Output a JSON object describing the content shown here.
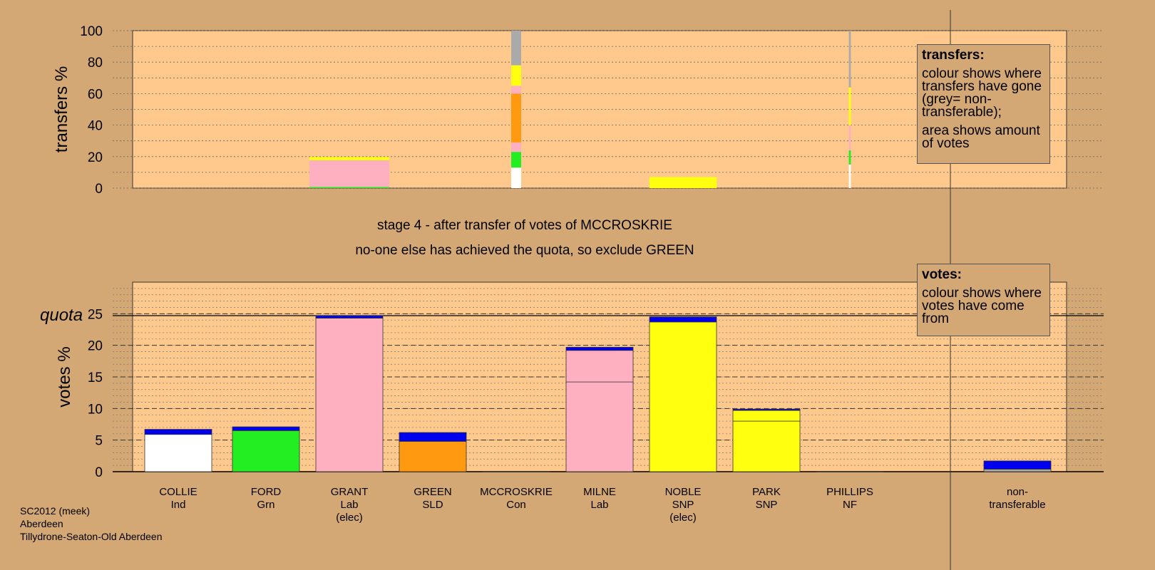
{
  "stage_text": "stage 4 - after transfer of votes of MCCROSKRIE",
  "decision_text": "no-one else has achieved the quota, so exclude GREEN",
  "colors": {
    "white": "#FFFFFF",
    "green": "#22EE22",
    "pink": "#FFB0C0",
    "orange": "#FF9910",
    "yellow": "#FFFF10",
    "grey": "#AAAAAA",
    "blue": "#0000EE",
    "plot_bg": "#FFC88C",
    "page_bg": "#D4A874"
  },
  "legend_transfers": {
    "title": "transfers:",
    "line1": "colour shows where transfers have gone (grey= non-transferable);",
    "line2": "area shows amount of votes"
  },
  "legend_votes": {
    "title": "votes:",
    "line1": "colour shows where votes have come from"
  },
  "credit": {
    "line1": "SC2012 (meek)",
    "line2": "Aberdeen",
    "line3": "Tillydrone-Seaton-Old Aberdeen"
  },
  "chart_data": [
    {
      "type": "bar",
      "name": "transfers",
      "ylabel": "transfers %",
      "ylim": [
        0,
        100
      ],
      "yticks": [
        0,
        20,
        40,
        60,
        80,
        100
      ],
      "bars": [
        {
          "candidate": "GRANT",
          "width_pct_votes": 3.2,
          "segments": [
            {
              "color": "green",
              "value": 0.7
            },
            {
              "color": "pink",
              "value": 17
            },
            {
              "color": "yellow",
              "value": 2
            }
          ]
        },
        {
          "candidate": "MCCROSKRIE",
          "width_pct_votes": 0.4,
          "segments": [
            {
              "color": "white",
              "value": 13
            },
            {
              "color": "green",
              "value": 10
            },
            {
              "color": "pink",
              "value": 6
            },
            {
              "color": "orange",
              "value": 31
            },
            {
              "color": "pink",
              "value": 5
            },
            {
              "color": "yellow",
              "value": 13
            },
            {
              "color": "grey",
              "value": 22
            }
          ]
        },
        {
          "candidate": "NOBLE",
          "width_pct_votes": 2.7,
          "segments": [
            {
              "color": "yellow",
              "value": 7
            }
          ]
        },
        {
          "candidate": "PHILLIPS",
          "width_pct_votes": 0.08,
          "segments": [
            {
              "color": "white",
              "value": 15
            },
            {
              "color": "green",
              "value": 9
            },
            {
              "color": "pink",
              "value": 16
            },
            {
              "color": "yellow",
              "value": 24
            },
            {
              "color": "grey",
              "value": 36
            }
          ]
        }
      ]
    },
    {
      "type": "bar",
      "name": "votes",
      "ylabel": "votes %",
      "ylim": [
        0,
        30
      ],
      "yticks": [
        0,
        5,
        10,
        15,
        20,
        25
      ],
      "quota": 24.7,
      "quota_label": "quota",
      "candidates": [
        {
          "name": "COLLIE",
          "party": "Ind",
          "note": "",
          "segments": [
            {
              "color": "white",
              "value": 5.9
            },
            {
              "color": "blue",
              "value": 0.8
            }
          ]
        },
        {
          "name": "FORD",
          "party": "Grn",
          "note": "",
          "segments": [
            {
              "color": "green",
              "value": 6.5
            },
            {
              "color": "blue",
              "value": 0.6
            }
          ]
        },
        {
          "name": "GRANT",
          "party": "Lab",
          "note": "(elec)",
          "segments": [
            {
              "color": "pink",
              "value": 24.3
            },
            {
              "color": "blue",
              "value": 0.4
            }
          ]
        },
        {
          "name": "GREEN",
          "party": "SLD",
          "note": "",
          "segments": [
            {
              "color": "orange",
              "value": 4.8
            },
            {
              "color": "blue",
              "value": 1.4
            }
          ]
        },
        {
          "name": "MCCROSKRIE",
          "party": "Con",
          "note": "",
          "segments": [
            {
              "color": "blue",
              "value": 0.05
            }
          ]
        },
        {
          "name": "MILNE",
          "party": "Lab",
          "note": "",
          "segments": [
            {
              "color": "pink",
              "value": 14.2
            },
            {
              "color": "pink",
              "value": 5.0
            },
            {
              "color": "blue",
              "value": 0.5
            }
          ]
        },
        {
          "name": "NOBLE",
          "party": "SNP",
          "note": "(elec)",
          "segments": [
            {
              "color": "yellow",
              "value": 23.7
            },
            {
              "color": "blue",
              "value": 0.8
            }
          ]
        },
        {
          "name": "PARK",
          "party": "SNP",
          "note": "",
          "segments": [
            {
              "color": "yellow",
              "value": 8.0
            },
            {
              "color": "yellow",
              "value": 1.7
            },
            {
              "color": "blue",
              "value": 0.2
            }
          ]
        },
        {
          "name": "PHILLIPS",
          "party": "NF",
          "note": "",
          "segments": [
            {
              "color": "blue",
              "value": 0.05
            }
          ]
        }
      ],
      "nontransferable": {
        "label_line1": "non-",
        "label_line2": "transferable",
        "segments": [
          {
            "color": "grey",
            "value": 0.4
          },
          {
            "color": "blue",
            "value": 1.3
          }
        ]
      }
    }
  ]
}
